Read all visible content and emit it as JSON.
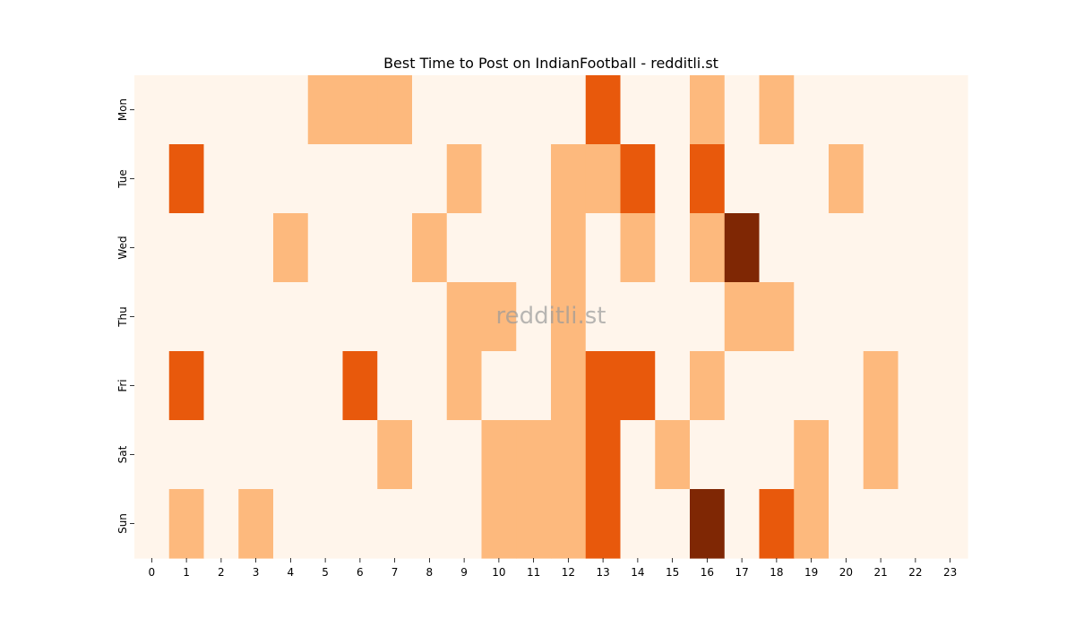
{
  "chart_data": {
    "type": "heatmap",
    "title": "Best Time to Post on IndianFootball - redditli.st",
    "watermark": "redditli.st",
    "x_categories": [
      "0",
      "1",
      "2",
      "3",
      "4",
      "5",
      "6",
      "7",
      "8",
      "9",
      "10",
      "11",
      "12",
      "13",
      "14",
      "15",
      "16",
      "17",
      "18",
      "19",
      "20",
      "21",
      "22",
      "23"
    ],
    "y_categories": [
      "Mon",
      "Tue",
      "Wed",
      "Thu",
      "Fri",
      "Sat",
      "Sun"
    ],
    "values": [
      [
        0,
        0,
        0,
        0,
        0,
        1,
        1,
        1,
        0,
        0,
        0,
        0,
        0,
        2,
        0,
        0,
        1,
        0,
        1,
        0,
        0,
        0,
        0,
        0
      ],
      [
        0,
        2,
        0,
        0,
        0,
        0,
        0,
        0,
        0,
        1,
        0,
        0,
        1,
        1,
        2,
        0,
        2,
        0,
        0,
        0,
        1,
        0,
        0,
        0
      ],
      [
        0,
        0,
        0,
        0,
        1,
        0,
        0,
        0,
        1,
        0,
        0,
        0,
        1,
        0,
        1,
        0,
        1,
        3,
        0,
        0,
        0,
        0,
        0,
        0
      ],
      [
        0,
        0,
        0,
        0,
        0,
        0,
        0,
        0,
        0,
        1,
        1,
        0,
        1,
        0,
        0,
        0,
        0,
        1,
        1,
        0,
        0,
        0,
        0,
        0
      ],
      [
        0,
        2,
        0,
        0,
        0,
        0,
        2,
        0,
        0,
        1,
        0,
        0,
        1,
        2,
        2,
        0,
        1,
        0,
        0,
        0,
        0,
        1,
        0,
        0
      ],
      [
        0,
        0,
        0,
        0,
        0,
        0,
        0,
        1,
        0,
        0,
        1,
        1,
        1,
        2,
        0,
        1,
        0,
        0,
        0,
        1,
        0,
        1,
        0,
        0
      ],
      [
        0,
        1,
        0,
        1,
        0,
        0,
        0,
        0,
        0,
        0,
        1,
        1,
        1,
        2,
        0,
        0,
        3,
        0,
        2,
        1,
        0,
        0,
        0,
        0
      ]
    ],
    "colors": [
      "#fff5eb",
      "#fdb97d",
      "#e8590c",
      "#7f2704"
    ],
    "colorbar": false
  }
}
